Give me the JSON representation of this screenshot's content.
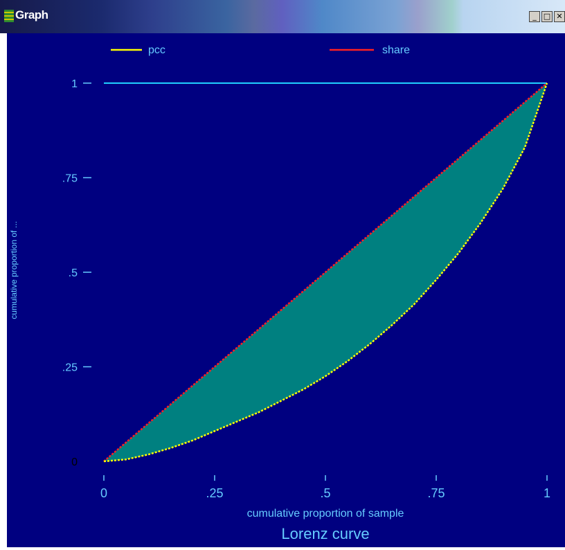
{
  "window": {
    "title": "Graph",
    "buttons": {
      "minimize": "_",
      "maximize": "□",
      "close": "✕"
    }
  },
  "colors": {
    "background": "#000080",
    "fill": "#008080",
    "equality_line": "#ff2020",
    "curve_line": "#ffff00",
    "top_line": "#20d0ff",
    "text": "#66ccff",
    "zero_label": "#000000"
  },
  "chart_data": {
    "type": "area",
    "title": "Lorenz curve",
    "xlabel": "cumulative proportion of sample",
    "ylabel": "cumulative proportion of ...",
    "xlim": [
      0,
      1
    ],
    "ylim": [
      0,
      1
    ],
    "x_ticks": [
      "0",
      ".25",
      ".5",
      ".75",
      "1"
    ],
    "y_ticks": [
      "0",
      ".25",
      ".5",
      ".75",
      "1"
    ],
    "legend": {
      "placement": "top",
      "entries": [
        "pcc",
        "share"
      ]
    },
    "series": [
      {
        "name": "pcc",
        "x": [
          0,
          0.05,
          0.1,
          0.15,
          0.2,
          0.25,
          0.3,
          0.35,
          0.4,
          0.45,
          0.5,
          0.55,
          0.6,
          0.65,
          0.7,
          0.75,
          0.8,
          0.85,
          0.9,
          0.95,
          1
        ],
        "y": [
          0,
          0.005,
          0.018,
          0.035,
          0.055,
          0.08,
          0.105,
          0.13,
          0.16,
          0.19,
          0.225,
          0.265,
          0.31,
          0.36,
          0.415,
          0.48,
          0.55,
          0.63,
          0.72,
          0.83,
          1
        ]
      },
      {
        "name": "share",
        "x": [
          0,
          1
        ],
        "y": [
          0,
          1
        ]
      }
    ],
    "reference_line": {
      "y": 1
    }
  }
}
